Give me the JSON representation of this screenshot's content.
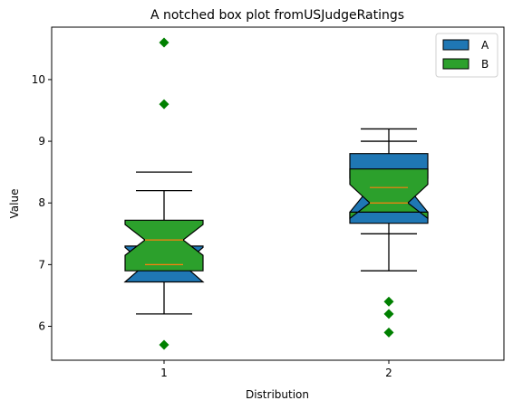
{
  "chart_data": {
    "type": "boxplot",
    "title": "A notched box plot fromUSJudgeRatings",
    "xlabel": "Distribution",
    "ylabel": "Value",
    "categories": [
      "1",
      "2"
    ],
    "ylim": [
      5.45,
      10.85
    ],
    "yticks": [
      "6",
      "7",
      "8",
      "9",
      "10"
    ],
    "legend_position": "top-right",
    "grid": false,
    "series": [
      {
        "name": "A",
        "color": "#1f77b4",
        "boxes": [
          {
            "category": "1",
            "q1": 6.72,
            "median": 7.0,
            "q3": 7.3,
            "notch_low": 6.72,
            "notch_high": 7.28
          },
          {
            "category": "2",
            "q1": 7.67,
            "median": 8.25,
            "q3": 8.8,
            "notch_low": 7.85,
            "notch_high": 8.4
          }
        ]
      },
      {
        "name": "B",
        "color": "#2ca02c",
        "boxes": [
          {
            "category": "1",
            "q1": 6.9,
            "median": 7.4,
            "q3": 7.72,
            "notch_low": 7.15,
            "notch_high": 7.65,
            "whisker_low": 6.2,
            "whisker_high": 8.2,
            "cap_high": 8.5,
            "fliers": [
              5.7,
              9.6,
              10.6
            ]
          },
          {
            "category": "2",
            "q1": 7.85,
            "median": 8.0,
            "q3": 8.55,
            "notch_low": 7.75,
            "notch_high": 8.3,
            "whisker_low": 6.9,
            "whisker_high": 9.2,
            "cap_low": 7.5,
            "cap_high": 9.0,
            "fliers": [
              5.9,
              6.2,
              6.4
            ]
          }
        ]
      }
    ],
    "median_color": "#ff7f0e",
    "flier_color": "#008000"
  }
}
